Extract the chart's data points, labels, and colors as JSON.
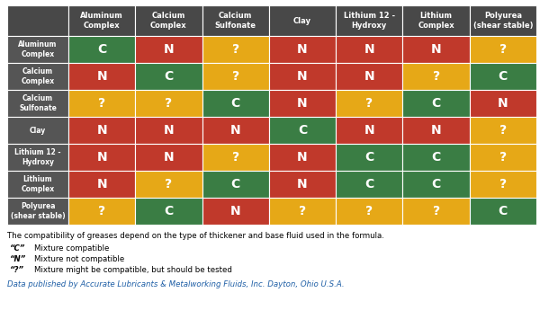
{
  "col_headers": [
    "Aluminum\nComplex",
    "Calcium\nComplex",
    "Calcium\nSulfonate",
    "Clay",
    "Lithium 12 -\nHydroxy",
    "Lithium\nComplex",
    "Polyurea\n(shear stable)"
  ],
  "row_headers": [
    "Aluminum\nComplex",
    "Calcium\nComplex",
    "Calcium\nSulfonate",
    "Clay",
    "Lithium 12 -\nHydroxy",
    "Lithium\nComplex",
    "Polyurea\n(shear stable)"
  ],
  "cells": [
    [
      "C",
      "N",
      "?",
      "N",
      "N",
      "N",
      "?"
    ],
    [
      "N",
      "C",
      "?",
      "N",
      "N",
      "?",
      "C"
    ],
    [
      "?",
      "?",
      "C",
      "N",
      "?",
      "C",
      "N"
    ],
    [
      "N",
      "N",
      "N",
      "C",
      "N",
      "N",
      "?"
    ],
    [
      "N",
      "N",
      "?",
      "N",
      "C",
      "C",
      "?"
    ],
    [
      "N",
      "?",
      "C",
      "N",
      "C",
      "C",
      "?"
    ],
    [
      "?",
      "C",
      "N",
      "?",
      "?",
      "?",
      "C"
    ]
  ],
  "color_map": {
    "C": "#3a7d44",
    "N": "#c0392b",
    "?": "#e6a817"
  },
  "header_bg": "#484848",
  "header_text": "#ffffff",
  "row_header_bg": "#555555",
  "row_header_text": "#ffffff",
  "cell_text_color": "#ffffff",
  "legend_text": "The compatibility of greases depend on the type of thickener and base fluid used in the formula.",
  "legend_items": [
    [
      "“C”",
      "Mixture compatible"
    ],
    [
      "“N”",
      "Mixture not compatible"
    ],
    [
      "“?”",
      "Mixture might be compatible, but should be tested"
    ]
  ],
  "footnote": "Data published by Accurate Lubricants & Metalworking Fluids, Inc. Dayton, Ohio U.S.A.",
  "footnote_color": "#1f5fa6",
  "fig_width": 6.0,
  "fig_height": 3.65,
  "dpi": 100
}
